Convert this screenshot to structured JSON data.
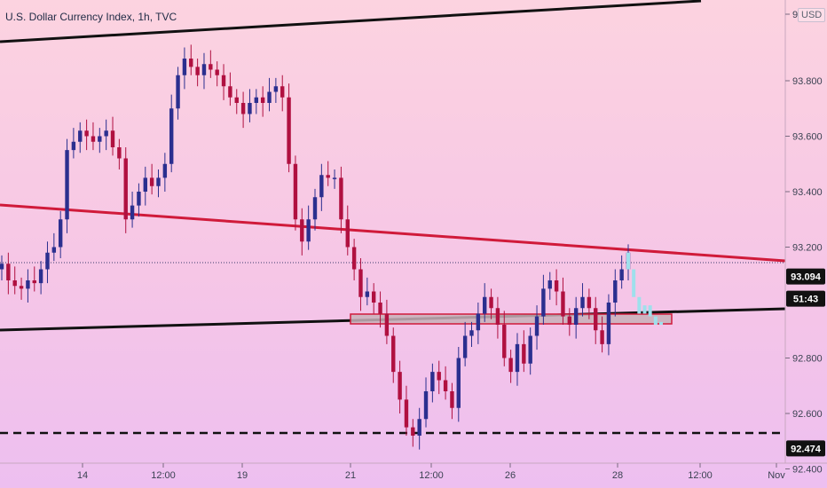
{
  "title": "U.S. Dollar Currency Index, 1h, TVC",
  "currency_badge": "USD",
  "price_axis": {
    "ticks": [
      "9",
      "93.800",
      "93.600",
      "93.400",
      "93.200",
      "92.800",
      "92.600",
      "92.400"
    ],
    "badges": [
      {
        "label": "93.094",
        "style": "dark"
      },
      {
        "label": "51:43",
        "style": "dark"
      },
      {
        "label": "92.474",
        "style": "dark"
      }
    ]
  },
  "time_axis": {
    "ticks": [
      "14",
      "12:00",
      "19",
      "21",
      "12:00",
      "26",
      "28",
      "12:00",
      "Nov"
    ]
  },
  "colors": {
    "up_candle": "#2b2f8f",
    "down_candle": "#b01040",
    "trendline_black": "#111111",
    "trendline_red": "#d01a3a",
    "zone_fill": "#c8b0b8",
    "zone_border": "#d01a3a",
    "projection": "#9ee0ec",
    "badge_bg": "#111111",
    "badge_text": "#ffffff"
  },
  "chart_data": {
    "type": "candlestick",
    "symbol": "U.S. Dollar Currency Index",
    "interval": "1h",
    "source": "TVC",
    "ylim": [
      92.4,
      94.05
    ],
    "last_price": 93.094,
    "countdown": "51:43",
    "dashed_level": 92.474,
    "support_zone": [
      92.89,
      92.92
    ],
    "series_close": [
      93.14,
      93.08,
      93.06,
      93.05,
      93.08,
      93.07,
      93.12,
      93.18,
      93.2,
      93.3,
      93.55,
      93.58,
      93.62,
      93.6,
      93.58,
      93.6,
      93.62,
      93.56,
      93.52,
      93.3,
      93.35,
      93.4,
      93.45,
      93.42,
      93.45,
      93.5,
      93.7,
      93.82,
      93.88,
      93.85,
      93.82,
      93.86,
      93.84,
      93.82,
      93.78,
      93.74,
      93.72,
      93.68,
      93.72,
      93.74,
      93.72,
      93.76,
      93.78,
      93.74,
      93.5,
      93.3,
      93.22,
      93.3,
      93.38,
      93.46,
      93.45,
      93.45,
      93.3,
      93.2,
      93.12,
      93.02,
      93.04,
      93.0,
      92.96,
      92.88,
      92.75,
      92.65,
      92.55,
      92.52,
      92.58,
      92.68,
      92.75,
      92.72,
      92.68,
      92.62,
      92.8,
      92.88,
      92.9,
      92.96,
      93.02,
      92.98,
      92.92,
      92.8,
      92.75,
      92.85,
      92.78,
      92.88,
      92.95,
      93.05,
      93.08,
      93.04,
      92.95,
      92.92,
      92.98,
      93.02,
      92.98,
      92.9,
      92.85,
      93.0,
      93.08,
      93.12,
      93.18
    ],
    "projection_close": [
      93.12,
      93.02,
      92.96,
      92.99,
      92.95,
      92.92,
      92.93
    ]
  }
}
